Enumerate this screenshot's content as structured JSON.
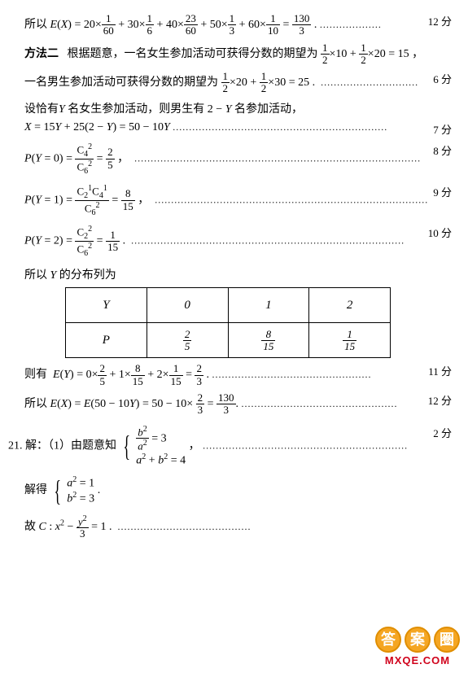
{
  "lines": {
    "l1_a": "所以",
    "l1_score": "12 分",
    "l2_a": "方法二",
    "l2_b": "根据题意，一名女生参加活动可获得分数的期望为",
    "l3_a": "一名男生参加活动可获得分数的期望为",
    "l3_score": "6 分",
    "l4_a": "设恰有",
    "l4_b": " 名女生参加活动，则男生有 ",
    "l4_c": " 名参加活动，",
    "l5_score": "7 分",
    "l6_score": "8 分",
    "l7_score": "9 分",
    "l8_score": "10 分",
    "l9_a": "所以",
    "l9_b": " 的分布列为",
    "l10_a": "则有",
    "l10_score": "11 分",
    "l11_a": "所以",
    "l11_score": "12 分",
    "l12_a": "21. 解：（1）由题意知",
    "l12_score": "2 分",
    "l13_a": "解得",
    "l14_a": "故",
    "wm_chars": [
      "答",
      "案",
      "圈"
    ],
    "wm_url": "MXQE.COM"
  },
  "table": {
    "header": [
      "Y",
      "0",
      "1",
      "2"
    ],
    "row2_label": "P",
    "fracs": [
      [
        "2",
        "5"
      ],
      [
        "8",
        "15"
      ],
      [
        "1",
        "15"
      ]
    ]
  },
  "style": {
    "bg": "#ffffff",
    "text_color": "#000000",
    "font_size": 14,
    "wm_circle_bg": "#f5a623",
    "wm_url_color": "#d0021b"
  }
}
